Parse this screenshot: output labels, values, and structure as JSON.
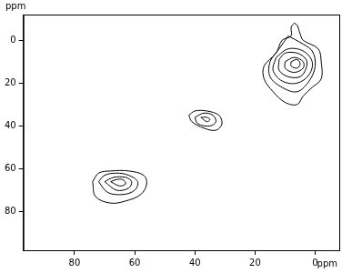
{
  "chart_data": {
    "type": "contour",
    "xlabel": "ppm",
    "ylabel": "ppm",
    "xlim": [
      97,
      -8
    ],
    "xticks": [
      80,
      60,
      40,
      20,
      0
    ],
    "ylim": [
      98,
      -12
    ],
    "yticks": [
      0,
      20,
      40,
      60,
      80
    ],
    "grid": false,
    "series": [
      {
        "color": "#000000",
        "x": [
          74,
          72,
          68,
          62,
          57,
          56,
          58,
          63,
          68,
          73,
          74
        ],
        "y": [
          66,
          62,
          61,
          61,
          63,
          67,
          72,
          75,
          76,
          73,
          66
        ]
      },
      {
        "color": "#000000",
        "x": [
          72,
          70,
          66,
          62,
          59,
          60,
          64,
          69,
          72
        ],
        "y": [
          66,
          63,
          62,
          63,
          66,
          70,
          72,
          71,
          66
        ]
      },
      {
        "color": "#000000",
        "x": [
          70,
          67,
          63,
          61,
          62,
          66,
          70
        ],
        "y": [
          66,
          64,
          64,
          66,
          69,
          70,
          66
        ]
      },
      {
        "color": "#000000",
        "x": [
          68,
          66,
          64,
          63,
          65,
          68
        ],
        "y": [
          66,
          65,
          65,
          67,
          68,
          66
        ]
      },
      {
        "color": "#000000",
        "x": [
          42,
          40,
          36,
          32,
          31,
          33,
          37,
          41,
          42
        ],
        "y": [
          35,
          33,
          33,
          35,
          39,
          42,
          41,
          38,
          35
        ]
      },
      {
        "color": "#000000",
        "x": [
          40,
          37,
          34,
          33,
          35,
          39,
          40
        ],
        "y": [
          36,
          34,
          35,
          38,
          40,
          39,
          36
        ]
      },
      {
        "color": "#000000",
        "x": [
          38,
          36,
          35,
          36,
          38
        ],
        "y": [
          36,
          36,
          37,
          38,
          36
        ]
      },
      {
        "color": "#000000",
        "x": [
          7,
          8,
          8,
          11,
          13,
          17,
          17,
          14,
          10,
          6,
          4,
          1,
          -2,
          -2,
          -1,
          4,
          5,
          6,
          7
        ],
        "y": [
          -8,
          -6,
          -2,
          0,
          6,
          12,
          18,
          24,
          29,
          30,
          26,
          22,
          18,
          10,
          4,
          0,
          -3,
          -7,
          -8
        ]
      },
      {
        "color": "#000000",
        "x": [
          9,
          12,
          15,
          15,
          11,
          6,
          2,
          0,
          1,
          5,
          9
        ],
        "y": [
          -2,
          4,
          10,
          17,
          22,
          24,
          19,
          12,
          5,
          1,
          -2
        ]
      },
      {
        "color": "#000000",
        "x": [
          13,
          14,
          11,
          6,
          2,
          1,
          4,
          9,
          13
        ],
        "y": [
          8,
          14,
          19,
          20,
          16,
          10,
          5,
          4,
          8
        ]
      },
      {
        "color": "#000000",
        "x": [
          12,
          12,
          9,
          5,
          3,
          3,
          6,
          10,
          12
        ],
        "y": [
          9,
          14,
          17,
          17,
          13,
          9,
          6,
          6,
          9
        ]
      },
      {
        "color": "#000000",
        "x": [
          10,
          10,
          7,
          4,
          4,
          7,
          10
        ],
        "y": [
          10,
          13,
          15,
          13,
          10,
          8,
          10
        ]
      },
      {
        "color": "#000000",
        "x": [
          8,
          8,
          6,
          5,
          6,
          8
        ],
        "y": [
          10,
          12,
          13,
          11,
          9,
          10
        ]
      }
    ]
  }
}
